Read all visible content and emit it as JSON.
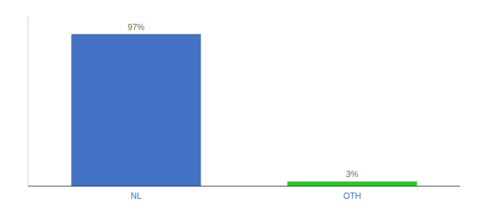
{
  "chart_data": {
    "type": "bar",
    "categories": [
      "NL",
      "OTH"
    ],
    "values": [
      97,
      3
    ],
    "value_labels": [
      "97%",
      "3%"
    ],
    "colors": [
      "#4472c4",
      "#22cc22"
    ],
    "ylim": [
      0,
      108
    ],
    "data_labels": true,
    "tick_labels": "x",
    "grid": false
  }
}
